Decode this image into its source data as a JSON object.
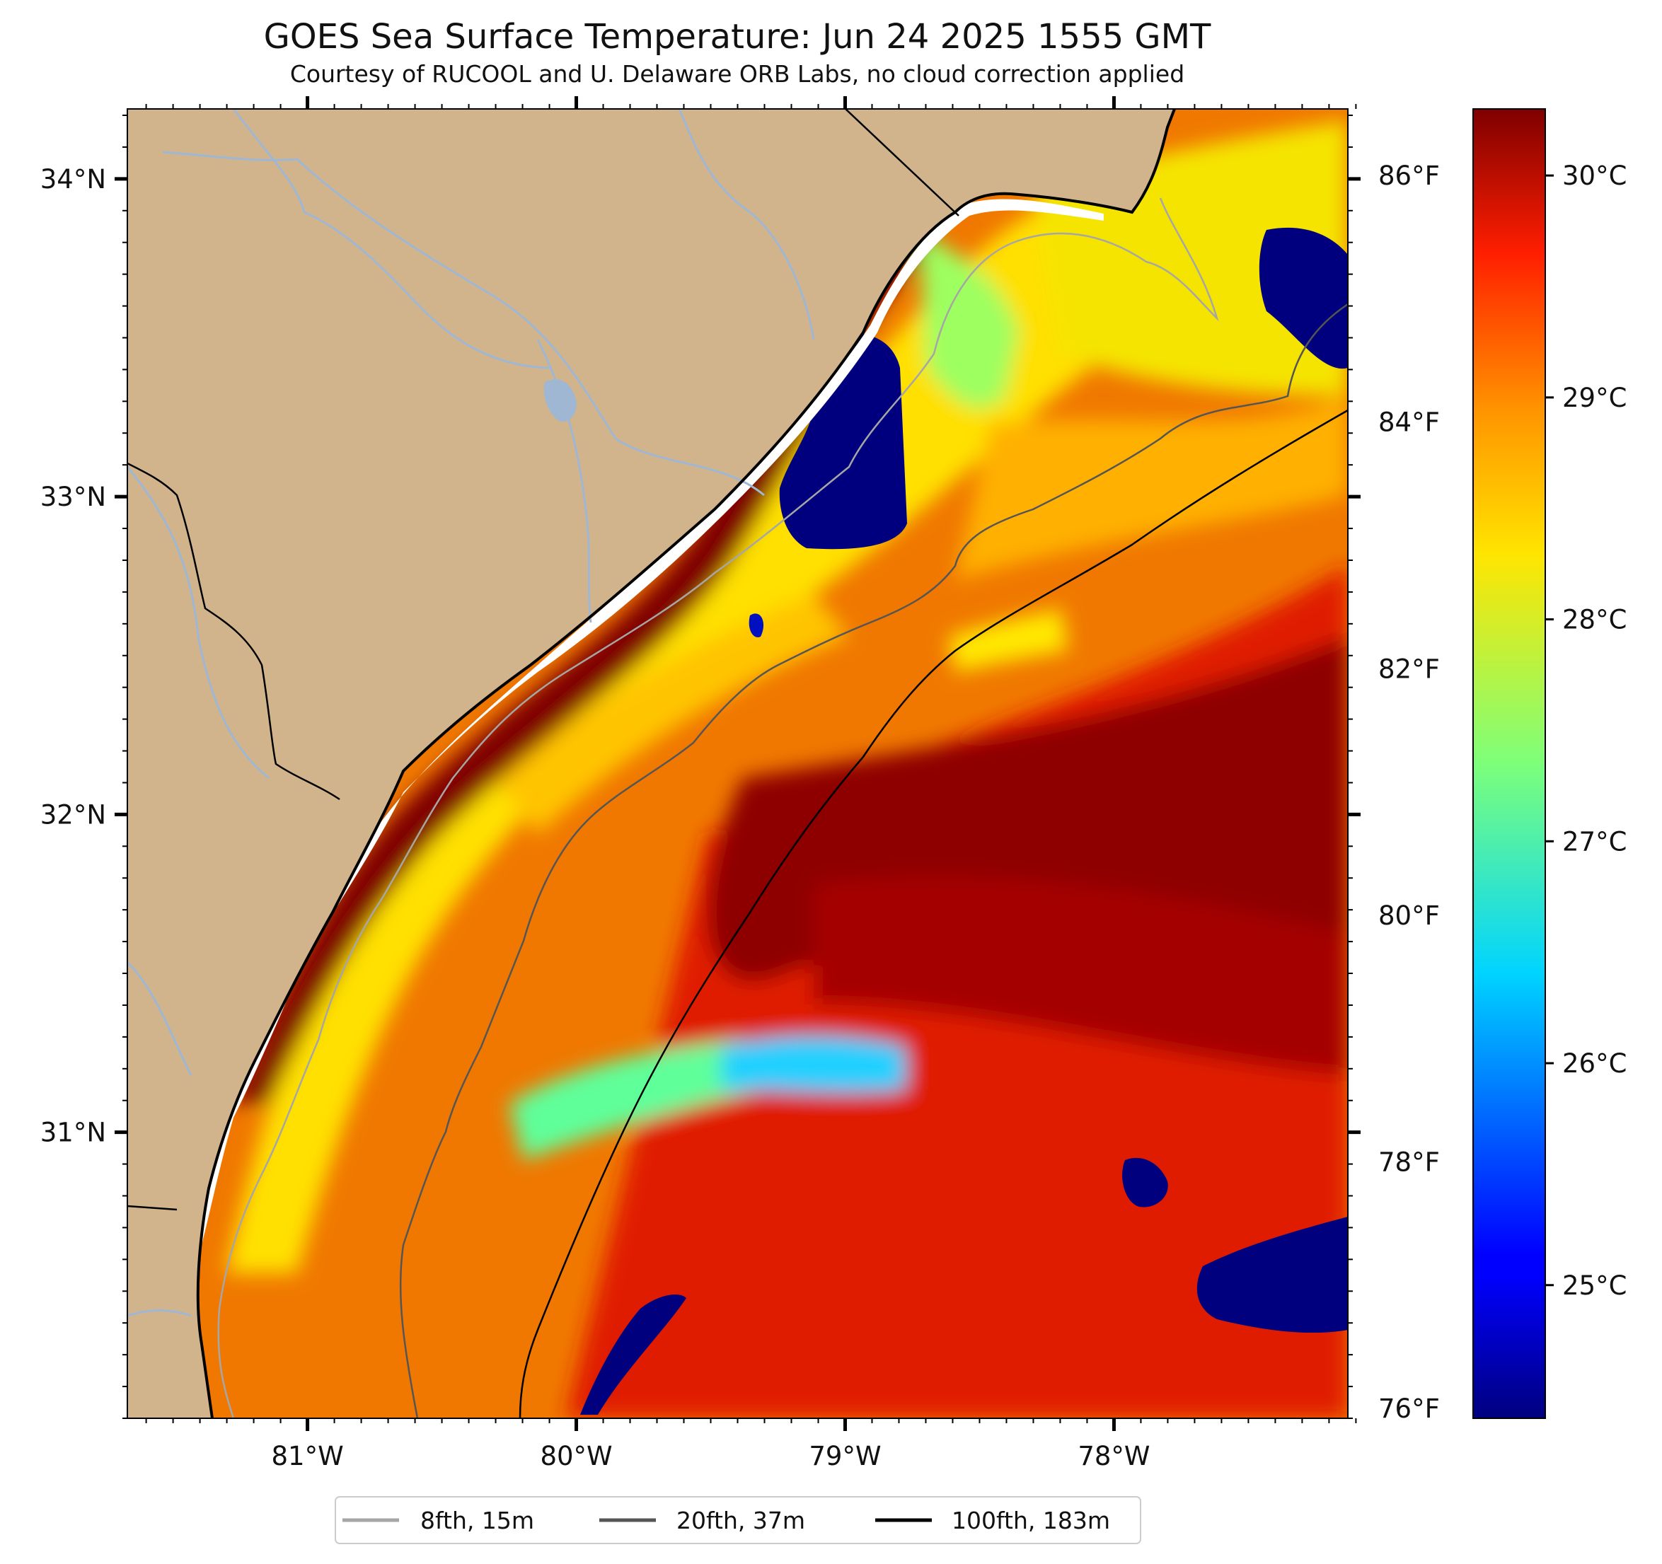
{
  "title": "GOES Sea Surface Temperature: Jun 24 2025 1555 GMT",
  "subtitle": "Courtesy of RUCOOL and U. Delaware ORB Labs, no cloud correction applied",
  "map": {
    "extent": {
      "lon_min": -81.67,
      "lon_max": -77.13,
      "lat_min": 30.1,
      "lat_max": 34.22
    },
    "land_color": "#d2b48c",
    "coast_color": "#000000",
    "river_color": "#9fb7d3",
    "x_ticks": [
      {
        "lon": -81,
        "label": "81°W"
      },
      {
        "lon": -80,
        "label": "80°W"
      },
      {
        "lon": -79,
        "label": "79°W"
      },
      {
        "lon": -78,
        "label": "78°W"
      }
    ],
    "y_ticks": [
      {
        "lat": 34,
        "label": "34°N"
      },
      {
        "lat": 33,
        "label": "33°N"
      },
      {
        "lat": 32,
        "label": "32°N"
      },
      {
        "lat": 31,
        "label": "31°N"
      }
    ],
    "f_ticks": [
      {
        "f": 86,
        "label": "86°F"
      },
      {
        "f": 84,
        "label": "84°F"
      },
      {
        "f": 82,
        "label": "82°F"
      },
      {
        "f": 80,
        "label": "80°F"
      },
      {
        "f": 78,
        "label": "78°F"
      },
      {
        "f": 76,
        "label": "76°F"
      }
    ]
  },
  "colorbar": {
    "min_c": 24.4,
    "max_c": 30.3,
    "colormap": "jet",
    "ticks": [
      {
        "c": 30,
        "label": "30°C"
      },
      {
        "c": 29,
        "label": "29°C"
      },
      {
        "c": 28,
        "label": "28°C"
      },
      {
        "c": 27,
        "label": "27°C"
      },
      {
        "c": 26,
        "label": "26°C"
      },
      {
        "c": 25,
        "label": "25°C"
      }
    ]
  },
  "legend": [
    {
      "label": "8fth, 15m",
      "color": "#a6a6a6"
    },
    {
      "label": "20fth, 37m",
      "color": "#555555"
    },
    {
      "label": "100fth, 183m",
      "color": "#000000"
    }
  ]
}
